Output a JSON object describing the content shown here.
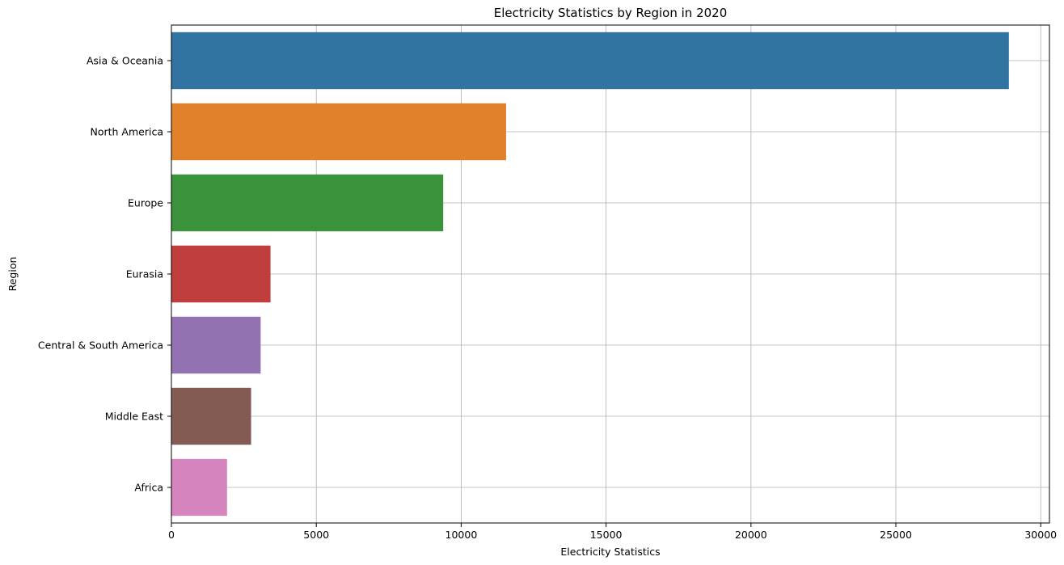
{
  "chart_data": {
    "type": "bar",
    "orientation": "horizontal",
    "title": "Electricity Statistics by Region in 2020",
    "xlabel": "Electricity Statistics",
    "ylabel": "Region",
    "xlim": [
      0,
      30300
    ],
    "xticks": [
      0,
      5000,
      10000,
      15000,
      20000,
      25000,
      30000
    ],
    "xtick_labels": [
      "0",
      "5000",
      "10000",
      "15000",
      "20000",
      "25000",
      "30000"
    ],
    "grid": true,
    "legend": "none",
    "categories": [
      "Asia & Oceania",
      "North America",
      "Europe",
      "Eurasia",
      "Central & South America",
      "Middle East",
      "Africa"
    ],
    "values": [
      28900,
      11550,
      9380,
      3420,
      3080,
      2750,
      1920
    ],
    "colors": [
      "#3274a1",
      "#e1812c",
      "#3a923a",
      "#c03d3e",
      "#9372b2",
      "#845b53",
      "#d684bd"
    ]
  }
}
